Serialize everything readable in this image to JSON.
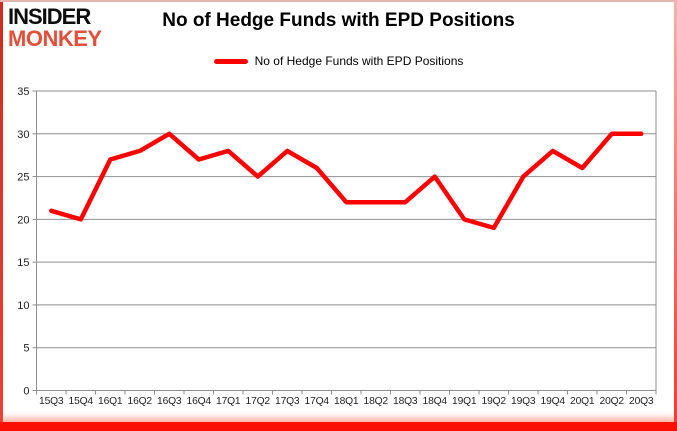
{
  "logo": {
    "line1": "INSIDER",
    "line2": "MONKEY"
  },
  "title": "No of Hedge Funds with EPD Positions",
  "legend": {
    "label": "No of Hedge Funds with EPD Positions",
    "swatch_color": "#fe0000"
  },
  "colors": {
    "series_red": "#fe0000",
    "grid_gray": "#8e8e8e",
    "axis_text": "#1f1f1f",
    "logo_black": "#0d0d0d",
    "logo_red": "#e2503c",
    "frame_red": "#fb0f02"
  },
  "chart_data": {
    "type": "line",
    "title": "No of Hedge Funds with EPD Positions",
    "xlabel": "",
    "ylabel": "",
    "ylim": [
      0,
      35
    ],
    "yticks": [
      0,
      5,
      10,
      15,
      20,
      25,
      30,
      35
    ],
    "grid": true,
    "legend_position": "top",
    "categories": [
      "15Q3",
      "15Q4",
      "16Q1",
      "16Q2",
      "16Q3",
      "16Q4",
      "17Q1",
      "17Q2",
      "17Q3",
      "17Q4",
      "18Q1",
      "18Q2",
      "18Q3",
      "18Q4",
      "19Q1",
      "19Q2",
      "19Q3",
      "19Q4",
      "20Q1",
      "20Q2",
      "20Q3"
    ],
    "series": [
      {
        "name": "No of Hedge Funds with EPD Positions",
        "color": "#fe0000",
        "values": [
          21,
          20,
          27,
          28,
          30,
          27,
          28,
          25,
          28,
          26,
          22,
          22,
          22,
          25,
          20,
          19,
          25,
          28,
          26,
          30,
          30
        ]
      }
    ]
  }
}
